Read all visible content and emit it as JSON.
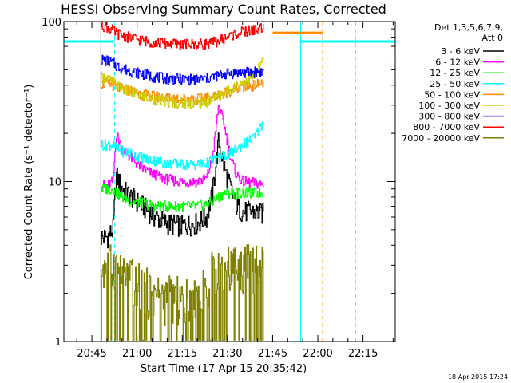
{
  "chart_data": {
    "type": "line",
    "title": "HESSI Observing Summary Count Rates, Corrected",
    "xlabel": "Start Time (17-Apr-15 20:35:42)",
    "ylabel": "Corrected Count Rate (s⁻¹ detector⁻¹)",
    "y_scale": "log",
    "ylim": [
      1,
      100
    ],
    "y_ticks": [
      "1",
      "10",
      "100"
    ],
    "xlim_minutes": [
      35.7,
      145.7
    ],
    "x_ticks": [
      {
        "label": "20:45",
        "minute": 45
      },
      {
        "label": "21:00",
        "minute": 60
      },
      {
        "label": "21:15",
        "minute": 75
      },
      {
        "label": "21:30",
        "minute": 90
      },
      {
        "label": "21:45",
        "minute": 105
      },
      {
        "label": "22:00",
        "minute": 120
      },
      {
        "label": "22:15",
        "minute": 135
      }
    ],
    "grid": false,
    "legend_position": "right",
    "legend_header": [
      "Det 1,3,5,6,7,9,",
      "Att 0"
    ],
    "series": [
      {
        "name": "3 - 6 keV",
        "color": "#000000",
        "x": [
          48,
          50,
          52,
          53,
          55,
          58,
          62,
          66,
          70,
          75,
          80,
          83,
          85,
          87,
          89,
          91,
          93,
          95,
          99,
          102
        ],
        "y": [
          4.5,
          4.5,
          5.0,
          11.0,
          9.0,
          8.0,
          7.0,
          6.0,
          5.5,
          5.3,
          5.5,
          6.0,
          8.5,
          18.0,
          12.0,
          9.0,
          7.0,
          6.5,
          6.5,
          6.3
        ]
      },
      {
        "name": "6 - 12 keV",
        "color": "#ff00ff",
        "x": [
          48,
          50,
          52,
          53,
          55,
          58,
          62,
          66,
          70,
          75,
          80,
          83,
          85,
          87,
          89,
          91,
          93,
          95,
          99,
          102
        ],
        "y": [
          9.5,
          9.5,
          10.0,
          20.0,
          16.0,
          14.0,
          12.0,
          11.0,
          10.3,
          10.0,
          10.0,
          10.5,
          14.0,
          30.0,
          22.0,
          14.0,
          11.0,
          10.0,
          9.8,
          9.5
        ]
      },
      {
        "name": "12 - 25 keV",
        "color": "#00ff00",
        "x": [
          48,
          50,
          52,
          53,
          55,
          58,
          62,
          66,
          70,
          75,
          80,
          83,
          85,
          87,
          89,
          91,
          93,
          95,
          99,
          102
        ],
        "y": [
          9.0,
          9.0,
          9.0,
          8.5,
          8.0,
          7.5,
          7.3,
          7.0,
          7.0,
          7.0,
          7.0,
          7.2,
          7.5,
          8.0,
          8.5,
          8.5,
          8.5,
          8.5,
          8.5,
          8.5
        ]
      },
      {
        "name": "25 - 50 keV",
        "color": "#00ffff",
        "x": [
          48,
          50,
          52,
          53,
          55,
          58,
          62,
          66,
          70,
          75,
          80,
          83,
          85,
          87,
          89,
          91,
          93,
          95,
          99,
          102
        ],
        "y": [
          17.0,
          17.0,
          17.0,
          16.0,
          15.5,
          15.0,
          14.0,
          13.5,
          13.0,
          12.8,
          12.8,
          13.0,
          13.5,
          14.0,
          14.5,
          15.0,
          16.0,
          17.0,
          19.0,
          24.0
        ]
      },
      {
        "name": "50 - 100 keV",
        "color": "#ff8c00",
        "x": [
          48,
          50,
          52,
          53,
          55,
          58,
          62,
          66,
          70,
          75,
          80,
          83,
          85,
          87,
          89,
          91,
          93,
          95,
          99,
          102
        ],
        "y": [
          41.0,
          41.0,
          40.0,
          39.0,
          38.0,
          37.0,
          35.0,
          34.0,
          33.5,
          33.0,
          33.0,
          33.5,
          34.0,
          35.0,
          36.0,
          37.0,
          38.0,
          39.0,
          40.0,
          42.0
        ]
      },
      {
        "name": "100 - 300 keV",
        "color": "#cccc00",
        "x": [
          48,
          50,
          52,
          53,
          55,
          58,
          62,
          66,
          70,
          75,
          80,
          83,
          85,
          87,
          89,
          91,
          93,
          95,
          99,
          102
        ],
        "y": [
          45.0,
          44.0,
          42.0,
          40.0,
          38.0,
          36.0,
          34.0,
          32.5,
          31.5,
          31.0,
          31.0,
          31.5,
          33.0,
          34.5,
          36.0,
          38.0,
          40.0,
          42.0,
          46.0,
          58.0
        ]
      },
      {
        "name": "300 - 800 keV",
        "color": "#0000ff",
        "x": [
          48,
          50,
          52,
          53,
          55,
          58,
          62,
          66,
          70,
          75,
          80,
          83,
          85,
          87,
          89,
          91,
          93,
          95,
          99,
          102
        ],
        "y": [
          58.0,
          57.0,
          55.0,
          53.0,
          51.0,
          49.0,
          47.0,
          45.0,
          44.0,
          43.5,
          43.5,
          44.0,
          45.0,
          46.0,
          47.0,
          47.5,
          48.0,
          48.0,
          48.5,
          49.0
        ]
      },
      {
        "name": "800 - 7000 keV",
        "color": "#ff0000",
        "x": [
          48,
          50,
          52,
          53,
          55,
          58,
          62,
          66,
          70,
          75,
          80,
          83,
          85,
          87,
          89,
          91,
          93,
          95,
          99,
          102
        ],
        "y": [
          95.0,
          92.0,
          88.0,
          85.0,
          82.0,
          79.0,
          76.0,
          74.0,
          73.0,
          72.0,
          72.0,
          72.5,
          74.0,
          76.0,
          79.0,
          82.0,
          84.0,
          86.0,
          89.0,
          92.0
        ]
      },
      {
        "name": "7000 - 20000 keV",
        "color": "#808000",
        "x": [
          48,
          50,
          52,
          53,
          55,
          58,
          62,
          66,
          70,
          75,
          80,
          83,
          85,
          87,
          89,
          91,
          93,
          95,
          99,
          102
        ],
        "y": [
          3.0,
          3.0,
          3.0,
          3.0,
          2.5,
          2.5,
          2.2,
          2.0,
          1.9,
          1.9,
          2.0,
          2.2,
          2.8,
          3.0,
          3.0,
          3.0,
          3.0,
          3.0,
          3.0,
          3.0
        ]
      }
    ],
    "flags": [
      {
        "color": "#00ffff",
        "level": 75,
        "x_from": 35.7,
        "x_to": 48.5
      },
      {
        "color": "#00ffff",
        "level": 75,
        "x_from": 48.5,
        "x_to": 52.5
      },
      {
        "color": "#ff8c00",
        "level": 85,
        "x_from": 105,
        "x_to": 121.5
      },
      {
        "color": "#00ffff",
        "level": 75,
        "x_from": 114,
        "x_to": 145.7
      }
    ],
    "vertical_lines": [
      {
        "color": "#000000",
        "x": 48,
        "style": "solid"
      },
      {
        "color": "#00ffff",
        "x": 52.5,
        "style": "dashed"
      },
      {
        "color": "#ff8c00",
        "x": 104.5,
        "style": "solid"
      },
      {
        "color": "#00ffff",
        "x": 114.3,
        "style": "solid"
      },
      {
        "color": "#ff8c00",
        "x": 121.6,
        "style": "dashed"
      },
      {
        "color": "#00ffff",
        "x": 132.5,
        "style": "dashed"
      }
    ],
    "timestamp": "18-Apr-2015 17:24"
  }
}
